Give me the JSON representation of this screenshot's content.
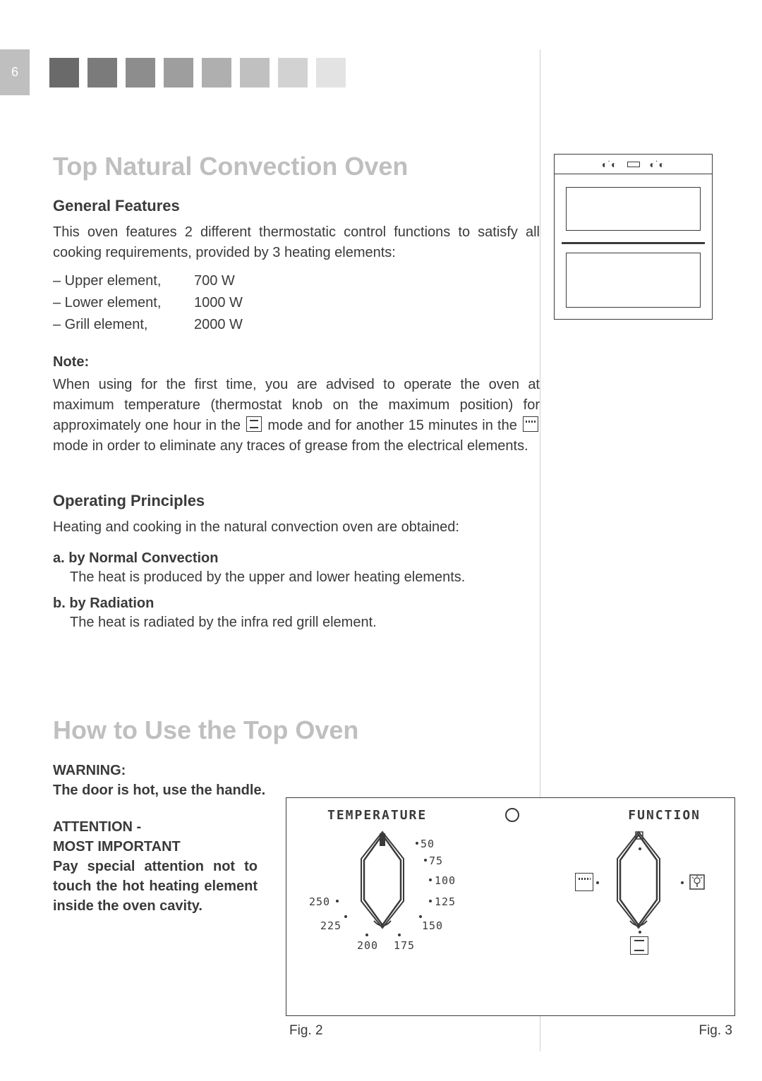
{
  "page_number": "6",
  "header_squares": {
    "count": 8,
    "size": 42,
    "gap": 12,
    "start_color": "#6a6a6a",
    "end_color": "#e3e3e3"
  },
  "title1": "Top Natural Convection Oven",
  "section_general": {
    "heading": "General Features",
    "intro": "This oven features 2 different thermostatic control functions to satisfy all cooking requirements, provided by 3 heating elements:",
    "elements": [
      {
        "label": "– Upper element,",
        "watt": "700 W"
      },
      {
        "label": "– Lower element,",
        "watt": "1000 W"
      },
      {
        "label": "– Grill element,",
        "watt": "2000 W"
      }
    ]
  },
  "note": {
    "label": "Note:",
    "text_before": "When using for the first time, you are advised to operate the oven at maximum temperature (thermostat knob on the maximum position) for approximately one hour in the ",
    "text_mid": " mode and for another 15 minutes in the ",
    "text_after": " mode in order to eliminate any traces of grease from the electrical elements."
  },
  "operating": {
    "heading": "Operating Principles",
    "intro": "Heating and cooking in the natural convection oven are obtained:",
    "a_label": "a. by Normal Convection",
    "a_text": "The heat is produced by the upper and lower heating elements.",
    "b_label": "b. by Radiation",
    "b_text": "The heat is radiated by the infra red grill  element."
  },
  "title2": "How to Use the Top Oven",
  "warning": {
    "label": "WARNING:",
    "text": "The door is hot, use the handle."
  },
  "attention": {
    "label1": "ATTENTION -",
    "label2": "MOST IMPORTANT",
    "text": "Pay special attention not to touch the hot heating element inside the oven cavity."
  },
  "figure": {
    "temp_label": "TEMPERATURE",
    "func_label": "FUNCTION",
    "temp_ticks": [
      "50",
      "75",
      "100",
      "125",
      "150",
      "175",
      "200",
      "225",
      "250"
    ],
    "fig2": "Fig. 2",
    "fig3": "Fig. 3"
  },
  "colors": {
    "heading_gray": "#bfbfbf",
    "text": "#3a3a3a",
    "border": "#3a3a3a"
  }
}
